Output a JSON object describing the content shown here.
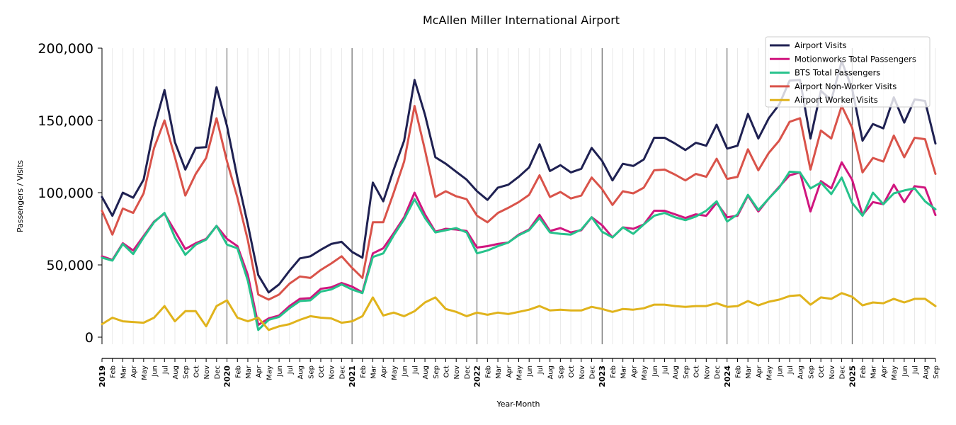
{
  "chart_data": {
    "type": "line",
    "title": "McAllen Miller International Airport",
    "xlabel": "Year-Month",
    "ylabel": "Passengers / Visits",
    "ylim": [
      -5000,
      200000
    ],
    "yticks": [
      0,
      50000,
      100000,
      150000,
      200000
    ],
    "ytick_labels": [
      "0",
      "50,000",
      "100,000",
      "150,000",
      "200,000"
    ],
    "grid": "vertical monthly lines, darker at January",
    "legend_position": "top-right",
    "x": [
      "2019",
      "Feb",
      "Mar",
      "Apr",
      "May",
      "Jun",
      "Jul",
      "Aug",
      "Sep",
      "Oct",
      "Nov",
      "Dec",
      "2020",
      "Feb",
      "Mar",
      "Apr",
      "May",
      "Jun",
      "Jul",
      "Aug",
      "Sep",
      "Oct",
      "Nov",
      "Dec",
      "2021",
      "Feb",
      "Mar",
      "Apr",
      "May",
      "Jun",
      "Jul",
      "Aug",
      "Sep",
      "Oct",
      "Nov",
      "Dec",
      "2022",
      "Feb",
      "Mar",
      "Apr",
      "May",
      "Jun",
      "Jul",
      "Aug",
      "Sep",
      "Oct",
      "Nov",
      "Dec",
      "2023",
      "Feb",
      "Mar",
      "Apr",
      "May",
      "Jun",
      "Jul",
      "Aug",
      "Sep",
      "Oct",
      "Nov",
      "Dec",
      "2024",
      "Feb",
      "Mar",
      "Apr",
      "May",
      "Jun",
      "Jul",
      "Aug",
      "Sep",
      "Oct",
      "Nov",
      "Dec",
      "2025",
      "Feb",
      "Mar",
      "Apr",
      "May",
      "Jun",
      "Jul",
      "Aug",
      "Sep"
    ],
    "series": [
      {
        "name": "Airport Visits",
        "color": "#1f2152",
        "values": [
          97000,
          84000,
          100000,
          96500,
          109000,
          145000,
          171000,
          135000,
          116000,
          131000,
          131500,
          173000,
          146000,
          110000,
          78000,
          43000,
          31000,
          36500,
          46000,
          54500,
          56000,
          60500,
          64500,
          66000,
          59000,
          55000,
          107000,
          94000,
          116000,
          136000,
          178000,
          154000,
          124500,
          120000,
          114500,
          109000,
          101000,
          95000,
          103500,
          105500,
          111000,
          117500,
          133500,
          115000,
          119000,
          114000,
          116500,
          131000,
          122000,
          108500,
          120000,
          118500,
          123000,
          138000,
          138000,
          134000,
          129500,
          134500,
          132500,
          147000,
          130500,
          132500,
          154500,
          137500,
          151500,
          161000,
          177500,
          178000,
          137500,
          170500,
          164000,
          191000,
          172000,
          136000,
          147500,
          144500,
          166000,
          148500,
          164500,
          163500,
          134000
        ]
      },
      {
        "name": "Motionworks Total Passengers",
        "color": "#d0167f",
        "values": [
          56000,
          53500,
          65000,
          60000,
          70000,
          80000,
          85500,
          73500,
          61000,
          65000,
          68000,
          77000,
          68000,
          63000,
          43000,
          8500,
          13000,
          15000,
          21500,
          26500,
          27000,
          33500,
          34500,
          37500,
          35000,
          31000,
          58000,
          61500,
          72000,
          83000,
          100000,
          85000,
          73000,
          75000,
          74500,
          73500,
          62000,
          63000,
          64500,
          65500,
          71000,
          74500,
          84500,
          73500,
          75500,
          72500,
          74000,
          83000,
          77500,
          69000,
          76000,
          75000,
          78000,
          87500,
          87500,
          85000,
          82500,
          85000,
          84000,
          93000,
          83000,
          84000,
          98000,
          87000,
          96000,
          104000,
          112000,
          114000,
          87000,
          108000,
          103000,
          121000,
          109000,
          84500,
          93500,
          92000,
          105500,
          93500,
          104500,
          103500,
          84500
        ]
      },
      {
        "name": "BTS Total Passengers",
        "color": "#26c28b",
        "values": [
          55000,
          53000,
          64500,
          57500,
          69000,
          79500,
          86000,
          69000,
          57000,
          64000,
          67500,
          77000,
          64000,
          61500,
          39000,
          5000,
          12000,
          14000,
          20000,
          25000,
          25500,
          31500,
          33000,
          36500,
          33000,
          30500,
          55500,
          58000,
          70500,
          81500,
          95500,
          82500,
          72500,
          74000,
          75500,
          72500,
          58000,
          60000,
          63000,
          65500,
          70500,
          74000,
          82500,
          72500,
          71500,
          71000,
          74500,
          83000,
          73000,
          69000,
          76000,
          71500,
          78000,
          84000,
          86000,
          83000,
          81000,
          83500,
          87500,
          94000,
          80000,
          85000,
          98500,
          88000,
          96000,
          103500,
          114500,
          114000,
          103000,
          107000,
          99000,
          110500,
          93000,
          84000,
          100000,
          92000,
          99500,
          101500,
          103000,
          94000,
          88500
        ]
      },
      {
        "name": "Airport Non-Worker Visits",
        "color": "#d9534a",
        "values": [
          87500,
          71000,
          89000,
          86000,
          99500,
          131000,
          150000,
          124500,
          98000,
          113000,
          124000,
          151500,
          121500,
          96500,
          67000,
          29500,
          26000,
          29500,
          37000,
          42000,
          41000,
          46500,
          51000,
          56000,
          48000,
          41000,
          79500,
          79500,
          100000,
          121500,
          160000,
          129500,
          97000,
          101000,
          97500,
          95500,
          84000,
          79500,
          86000,
          89500,
          93500,
          98500,
          112000,
          97000,
          100500,
          96000,
          98000,
          110500,
          102500,
          91500,
          101000,
          99500,
          103500,
          115500,
          116000,
          112500,
          108500,
          113000,
          111000,
          123500,
          109500,
          111000,
          130000,
          115500,
          127500,
          136000,
          149000,
          151500,
          116000,
          143000,
          137500,
          160000,
          145000,
          114000,
          124000,
          121500,
          139500,
          124500,
          138000,
          137000,
          113000
        ]
      },
      {
        "name": "Airport Worker Visits",
        "color": "#e0b31c",
        "values": [
          9000,
          13500,
          11000,
          10500,
          10000,
          13500,
          21500,
          11000,
          18000,
          18000,
          7500,
          21500,
          25500,
          13500,
          11000,
          13500,
          5000,
          7500,
          9000,
          12000,
          14500,
          13500,
          13000,
          10000,
          11000,
          14500,
          27500,
          15000,
          17000,
          14500,
          18000,
          24000,
          27500,
          19500,
          17500,
          14500,
          17000,
          15500,
          17000,
          16000,
          17500,
          19000,
          21500,
          18500,
          19000,
          18500,
          18500,
          21000,
          19500,
          17500,
          19500,
          19000,
          20000,
          22500,
          22500,
          21500,
          21000,
          21500,
          21500,
          23500,
          21000,
          21500,
          25000,
          22000,
          24500,
          26000,
          28500,
          29000,
          22500,
          27500,
          26500,
          30500,
          28000,
          22000,
          24000,
          23500,
          26500,
          24000,
          26500,
          26500,
          21500
        ]
      }
    ]
  }
}
